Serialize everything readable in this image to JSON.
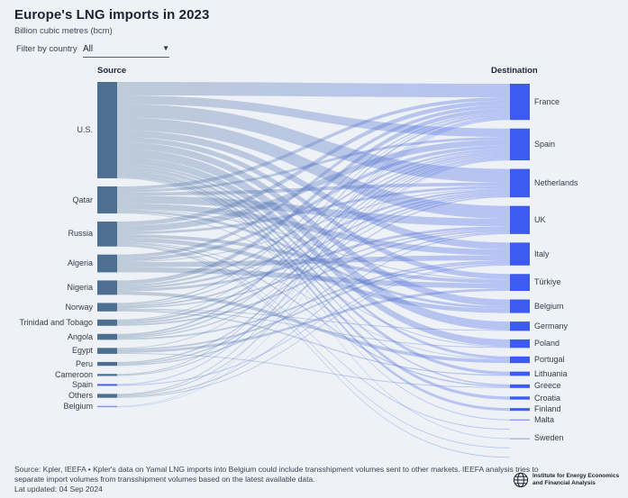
{
  "header": {
    "title": "Europe's LNG imports in 2023",
    "subtitle": "Billion cubic metres (bcm)"
  },
  "filter": {
    "label": "Filter by country",
    "value": "All",
    "caret_icon": "▼"
  },
  "columns": {
    "source": "Source",
    "destination": "Destination"
  },
  "chart_data": {
    "type": "sankey",
    "unit": "bcm",
    "note": "No numeric labels are rendered in the chart; link values are estimated from node heights.",
    "colors": {
      "background": "#eef2f7",
      "source_node": "#4d7090",
      "dest_node": "#3d5af1",
      "reexport_node": "#7b93ee",
      "flow_start": "#4d7090",
      "flow_end": "#5b76f2"
    },
    "sources": [
      {
        "id": "us",
        "label": "U.S."
      },
      {
        "id": "qatar",
        "label": "Qatar"
      },
      {
        "id": "russia",
        "label": "Russia"
      },
      {
        "id": "algeria",
        "label": "Algeria"
      },
      {
        "id": "nigeria",
        "label": "Nigeria"
      },
      {
        "id": "norway",
        "label": "Norway"
      },
      {
        "id": "tt",
        "label": "Trinidad and Tobago"
      },
      {
        "id": "angola",
        "label": "Angola"
      },
      {
        "id": "egypt",
        "label": "Egypt"
      },
      {
        "id": "peru",
        "label": "Peru"
      },
      {
        "id": "cameroon",
        "label": "Cameroon"
      },
      {
        "id": "spain_src",
        "label": "Spain",
        "color": "#3d5af1"
      },
      {
        "id": "others",
        "label": "Others"
      },
      {
        "id": "belgium_src",
        "label": "Belgium",
        "color": "#7b93ee"
      }
    ],
    "destinations": [
      {
        "id": "fr",
        "label": "France"
      },
      {
        "id": "es",
        "label": "Spain"
      },
      {
        "id": "nl",
        "label": "Netherlands"
      },
      {
        "id": "uk",
        "label": "UK"
      },
      {
        "id": "it",
        "label": "Italy"
      },
      {
        "id": "tr",
        "label": "Türkiye"
      },
      {
        "id": "be",
        "label": "Belgium"
      },
      {
        "id": "de",
        "label": "Germany"
      },
      {
        "id": "pl",
        "label": "Poland"
      },
      {
        "id": "pt",
        "label": "Portugal"
      },
      {
        "id": "lt",
        "label": "Lithuania"
      },
      {
        "id": "gr",
        "label": "Greece"
      },
      {
        "id": "hr",
        "label": "Croatia"
      },
      {
        "id": "fi",
        "label": "Finland"
      },
      {
        "id": "mt",
        "label": "Malta",
        "color": "#7b93ee"
      },
      {
        "id": "out1",
        "label": "",
        "color": "none"
      },
      {
        "id": "se",
        "label": "Sweden",
        "color": "#97a9f2"
      },
      {
        "id": "out2",
        "label": "",
        "color": "none"
      },
      {
        "id": "out3",
        "label": "",
        "color": "none"
      }
    ],
    "links": [
      [
        "us",
        "fr",
        8
      ],
      [
        "us",
        "es",
        5
      ],
      [
        "us",
        "nl",
        8
      ],
      [
        "us",
        "uk",
        7.5
      ],
      [
        "us",
        "it",
        4
      ],
      [
        "us",
        "tr",
        3
      ],
      [
        "us",
        "be",
        4
      ],
      [
        "us",
        "de",
        5
      ],
      [
        "us",
        "pl",
        4
      ],
      [
        "us",
        "pt",
        1.5
      ],
      [
        "us",
        "lt",
        1.8
      ],
      [
        "us",
        "gr",
        0.8
      ],
      [
        "us",
        "hr",
        1.8
      ],
      [
        "us",
        "fi",
        1.6
      ],
      [
        "us",
        "mt",
        0.5
      ],
      [
        "us",
        "se",
        0.4
      ],
      [
        "qatar",
        "fr",
        2
      ],
      [
        "qatar",
        "es",
        1.5
      ],
      [
        "qatar",
        "nl",
        2
      ],
      [
        "qatar",
        "uk",
        4.5
      ],
      [
        "qatar",
        "it",
        3.5
      ],
      [
        "qatar",
        "tr",
        0.5
      ],
      [
        "qatar",
        "be",
        1.5
      ],
      [
        "qatar",
        "pl",
        0.5
      ],
      [
        "russia",
        "fr",
        2.5
      ],
      [
        "russia",
        "es",
        3.5
      ],
      [
        "russia",
        "nl",
        1.5
      ],
      [
        "russia",
        "tr",
        2
      ],
      [
        "russia",
        "be",
        2.5
      ],
      [
        "russia",
        "pt",
        0.4
      ],
      [
        "russia",
        "gr",
        0.8
      ],
      [
        "russia",
        "out1",
        0.5
      ],
      [
        "russia",
        "out2",
        0.5
      ],
      [
        "russia",
        "out3",
        0.5
      ],
      [
        "algeria",
        "fr",
        2
      ],
      [
        "algeria",
        "es",
        2
      ],
      [
        "algeria",
        "nl",
        0.5
      ],
      [
        "algeria",
        "it",
        3
      ],
      [
        "algeria",
        "tr",
        3
      ],
      [
        "nigeria",
        "fr",
        2.5
      ],
      [
        "nigeria",
        "es",
        1.2
      ],
      [
        "nigeria",
        "nl",
        1.3
      ],
      [
        "nigeria",
        "uk",
        1.5
      ],
      [
        "nigeria",
        "pt",
        2
      ],
      [
        "norway",
        "fr",
        0.8
      ],
      [
        "norway",
        "es",
        0.7
      ],
      [
        "norway",
        "nl",
        1
      ],
      [
        "norway",
        "uk",
        0.8
      ],
      [
        "norway",
        "de",
        0.5
      ],
      [
        "norway",
        "pl",
        0.5
      ],
      [
        "norway",
        "lt",
        0.7
      ],
      [
        "tt",
        "fr",
        0.5
      ],
      [
        "tt",
        "es",
        1.2
      ],
      [
        "tt",
        "nl",
        1
      ],
      [
        "tt",
        "uk",
        1
      ],
      [
        "angola",
        "fr",
        1
      ],
      [
        "angola",
        "es",
        0.8
      ],
      [
        "angola",
        "nl",
        0.7
      ],
      [
        "angola",
        "it",
        1
      ],
      [
        "egypt",
        "es",
        0.5
      ],
      [
        "egypt",
        "it",
        1
      ],
      [
        "egypt",
        "tr",
        1.5
      ],
      [
        "egypt",
        "gr",
        0.5
      ],
      [
        "peru",
        "es",
        0.8
      ],
      [
        "peru",
        "nl",
        0.8
      ],
      [
        "peru",
        "uk",
        0.7
      ],
      [
        "cameroon",
        "fr",
        0.6
      ],
      [
        "cameroon",
        "es",
        0.6
      ],
      [
        "spain_src",
        "fr",
        0.5
      ],
      [
        "spain_src",
        "it",
        0.5
      ],
      [
        "others",
        "fr",
        0.6
      ],
      [
        "others",
        "es",
        0.6
      ],
      [
        "others",
        "uk",
        0.6
      ],
      [
        "others",
        "it",
        0.5
      ],
      [
        "belgium_src",
        "fr",
        0.4
      ],
      [
        "belgium_src",
        "es",
        0.4
      ]
    ]
  },
  "footer": {
    "note": "Source: Kpler, IEEFA • Kpler's data on Yamal LNG imports into Belgium could include transshipment volumes sent to other markets. IEEFA analysis tries to separate import volumes from transshipment volumes based on the latest available data.",
    "updated": "Lat updated: 04 Sep 2024",
    "logo": {
      "line1": "Institute for Energy Economics",
      "line2": "and Financial Analysis"
    }
  }
}
